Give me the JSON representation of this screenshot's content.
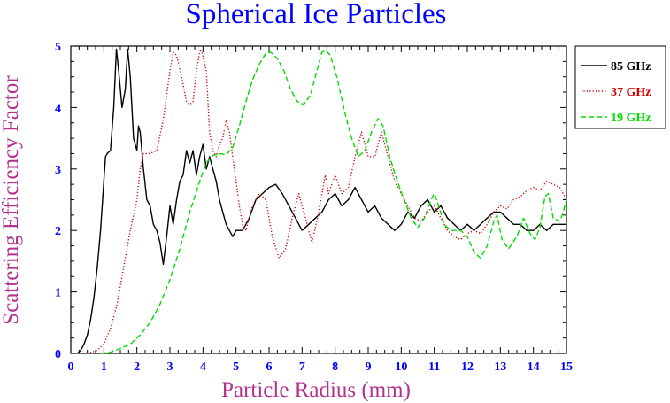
{
  "chart_data": {
    "type": "line",
    "title": "Spherical Ice Particles",
    "xlabel": "Particle Radius (mm)",
    "ylabel": "Scattering Efficiency Factor",
    "xlim": [
      0,
      15
    ],
    "ylim": [
      0,
      5
    ],
    "xticks": [
      "0",
      "1",
      "2",
      "3",
      "4",
      "5",
      "6",
      "7",
      "8",
      "9",
      "10",
      "11",
      "12",
      "13",
      "14",
      "15"
    ],
    "yticks": [
      "0",
      "1",
      "2",
      "3",
      "4",
      "5"
    ],
    "grid": false,
    "legend_position": "outside-top-right",
    "colors": {
      "title": "#0000ff",
      "axis_labels": "#b3338c",
      "tick_labels": "#0000ff"
    },
    "series": [
      {
        "name": "85 GHz",
        "color": "#000000",
        "dash": "solid",
        "points": [
          [
            0.2,
            0.0
          ],
          [
            0.3,
            0.05
          ],
          [
            0.4,
            0.15
          ],
          [
            0.5,
            0.3
          ],
          [
            0.6,
            0.55
          ],
          [
            0.7,
            0.9
          ],
          [
            0.8,
            1.4
          ],
          [
            0.9,
            2.0
          ],
          [
            1.0,
            2.8
          ],
          [
            1.05,
            3.2
          ],
          [
            1.1,
            3.25
          ],
          [
            1.2,
            3.3
          ],
          [
            1.3,
            4.0
          ],
          [
            1.38,
            4.95
          ],
          [
            1.45,
            4.6
          ],
          [
            1.55,
            4.0
          ],
          [
            1.65,
            4.3
          ],
          [
            1.72,
            4.95
          ],
          [
            1.8,
            4.5
          ],
          [
            1.9,
            3.5
          ],
          [
            2.0,
            3.3
          ],
          [
            2.05,
            3.7
          ],
          [
            2.1,
            3.6
          ],
          [
            2.2,
            3.0
          ],
          [
            2.3,
            2.5
          ],
          [
            2.4,
            2.4
          ],
          [
            2.5,
            2.1
          ],
          [
            2.6,
            2.0
          ],
          [
            2.7,
            1.8
          ],
          [
            2.8,
            1.45
          ],
          [
            2.9,
            1.9
          ],
          [
            3.0,
            2.4
          ],
          [
            3.1,
            2.1
          ],
          [
            3.2,
            2.5
          ],
          [
            3.3,
            2.8
          ],
          [
            3.4,
            2.9
          ],
          [
            3.5,
            3.3
          ],
          [
            3.6,
            3.1
          ],
          [
            3.7,
            3.3
          ],
          [
            3.8,
            2.9
          ],
          [
            3.9,
            3.2
          ],
          [
            4.0,
            3.4
          ],
          [
            4.1,
            3.0
          ],
          [
            4.2,
            3.2
          ],
          [
            4.3,
            3.0
          ],
          [
            4.4,
            2.8
          ],
          [
            4.5,
            2.5
          ],
          [
            4.6,
            2.3
          ],
          [
            4.7,
            2.1
          ],
          [
            4.8,
            2.0
          ],
          [
            4.9,
            1.9
          ],
          [
            5.0,
            2.0
          ],
          [
            5.2,
            2.0
          ],
          [
            5.4,
            2.2
          ],
          [
            5.6,
            2.5
          ],
          [
            5.8,
            2.6
          ],
          [
            6.0,
            2.7
          ],
          [
            6.2,
            2.75
          ],
          [
            6.4,
            2.6
          ],
          [
            6.6,
            2.4
          ],
          [
            6.8,
            2.2
          ],
          [
            7.0,
            2.0
          ],
          [
            7.2,
            2.1
          ],
          [
            7.4,
            2.2
          ],
          [
            7.6,
            2.3
          ],
          [
            7.8,
            2.5
          ],
          [
            8.0,
            2.6
          ],
          [
            8.2,
            2.4
          ],
          [
            8.4,
            2.5
          ],
          [
            8.6,
            2.7
          ],
          [
            8.8,
            2.5
          ],
          [
            9.0,
            2.3
          ],
          [
            9.2,
            2.4
          ],
          [
            9.4,
            2.2
          ],
          [
            9.6,
            2.1
          ],
          [
            9.8,
            2.0
          ],
          [
            10.0,
            2.1
          ],
          [
            10.2,
            2.3
          ],
          [
            10.4,
            2.2
          ],
          [
            10.6,
            2.4
          ],
          [
            10.8,
            2.5
          ],
          [
            11.0,
            2.3
          ],
          [
            11.2,
            2.4
          ],
          [
            11.4,
            2.2
          ],
          [
            11.6,
            2.1
          ],
          [
            11.8,
            2.0
          ],
          [
            12.0,
            2.1
          ],
          [
            12.2,
            2.0
          ],
          [
            12.4,
            2.1
          ],
          [
            12.6,
            2.2
          ],
          [
            12.8,
            2.3
          ],
          [
            13.0,
            2.3
          ],
          [
            13.2,
            2.2
          ],
          [
            13.4,
            2.1
          ],
          [
            13.6,
            2.1
          ],
          [
            13.8,
            2.0
          ],
          [
            14.0,
            2.0
          ],
          [
            14.2,
            2.1
          ],
          [
            14.4,
            2.0
          ],
          [
            14.6,
            2.1
          ],
          [
            14.8,
            2.1
          ],
          [
            15.0,
            2.1
          ]
        ]
      },
      {
        "name": "37 GHz",
        "color": "#cc0000",
        "dash": "dotted",
        "points": [
          [
            0.5,
            0.0
          ],
          [
            0.8,
            0.05
          ],
          [
            1.0,
            0.15
          ],
          [
            1.2,
            0.4
          ],
          [
            1.4,
            0.8
          ],
          [
            1.6,
            1.4
          ],
          [
            1.8,
            2.0
          ],
          [
            2.0,
            2.5
          ],
          [
            2.1,
            3.0
          ],
          [
            2.2,
            3.25
          ],
          [
            2.4,
            3.25
          ],
          [
            2.6,
            3.3
          ],
          [
            2.8,
            3.8
          ],
          [
            3.0,
            4.6
          ],
          [
            3.1,
            4.9
          ],
          [
            3.2,
            4.85
          ],
          [
            3.35,
            4.5
          ],
          [
            3.5,
            4.1
          ],
          [
            3.6,
            4.05
          ],
          [
            3.7,
            4.1
          ],
          [
            3.8,
            4.6
          ],
          [
            3.9,
            4.9
          ],
          [
            3.95,
            4.95
          ],
          [
            4.1,
            4.6
          ],
          [
            4.2,
            3.6
          ],
          [
            4.3,
            3.3
          ],
          [
            4.4,
            3.2
          ],
          [
            4.5,
            3.4
          ],
          [
            4.6,
            3.5
          ],
          [
            4.7,
            3.8
          ],
          [
            4.8,
            3.6
          ],
          [
            4.9,
            3.2
          ],
          [
            5.0,
            2.8
          ],
          [
            5.1,
            2.4
          ],
          [
            5.2,
            2.1
          ],
          [
            5.3,
            2.0
          ],
          [
            5.5,
            2.4
          ],
          [
            5.7,
            2.6
          ],
          [
            5.9,
            2.5
          ],
          [
            6.0,
            2.2
          ],
          [
            6.1,
            1.9
          ],
          [
            6.3,
            1.55
          ],
          [
            6.5,
            1.7
          ],
          [
            6.7,
            2.2
          ],
          [
            6.9,
            2.6
          ],
          [
            7.1,
            2.2
          ],
          [
            7.3,
            1.8
          ],
          [
            7.5,
            2.3
          ],
          [
            7.7,
            2.9
          ],
          [
            7.8,
            2.6
          ],
          [
            8.0,
            2.9
          ],
          [
            8.2,
            2.6
          ],
          [
            8.4,
            2.7
          ],
          [
            8.6,
            3.2
          ],
          [
            8.8,
            3.6
          ],
          [
            9.0,
            3.2
          ],
          [
            9.2,
            3.2
          ],
          [
            9.4,
            3.6
          ],
          [
            9.6,
            3.2
          ],
          [
            9.8,
            2.8
          ],
          [
            10.0,
            2.6
          ],
          [
            10.2,
            2.4
          ],
          [
            10.4,
            2.2
          ],
          [
            10.6,
            2.15
          ],
          [
            10.8,
            2.3
          ],
          [
            11.0,
            2.4
          ],
          [
            11.2,
            2.2
          ],
          [
            11.4,
            2.0
          ],
          [
            11.6,
            1.9
          ],
          [
            11.8,
            1.85
          ],
          [
            12.0,
            1.95
          ],
          [
            12.2,
            2.0
          ],
          [
            12.4,
            1.95
          ],
          [
            12.6,
            2.1
          ],
          [
            12.8,
            2.3
          ],
          [
            13.0,
            2.4
          ],
          [
            13.2,
            2.35
          ],
          [
            13.4,
            2.5
          ],
          [
            13.6,
            2.55
          ],
          [
            13.8,
            2.65
          ],
          [
            14.0,
            2.7
          ],
          [
            14.2,
            2.65
          ],
          [
            14.4,
            2.8
          ],
          [
            14.6,
            2.75
          ],
          [
            14.8,
            2.7
          ],
          [
            15.0,
            2.5
          ]
        ]
      },
      {
        "name": "19 GHz",
        "color": "#00dd00",
        "dash": "dashed",
        "points": [
          [
            0.9,
            0.0
          ],
          [
            1.2,
            0.02
          ],
          [
            1.5,
            0.08
          ],
          [
            1.8,
            0.15
          ],
          [
            2.1,
            0.3
          ],
          [
            2.4,
            0.5
          ],
          [
            2.7,
            0.8
          ],
          [
            3.0,
            1.2
          ],
          [
            3.3,
            1.7
          ],
          [
            3.6,
            2.3
          ],
          [
            3.9,
            2.8
          ],
          [
            4.1,
            3.1
          ],
          [
            4.3,
            3.22
          ],
          [
            4.5,
            3.25
          ],
          [
            4.7,
            3.23
          ],
          [
            4.9,
            3.35
          ],
          [
            5.1,
            3.7
          ],
          [
            5.3,
            4.1
          ],
          [
            5.5,
            4.45
          ],
          [
            5.7,
            4.7
          ],
          [
            5.9,
            4.88
          ],
          [
            6.05,
            4.9
          ],
          [
            6.25,
            4.8
          ],
          [
            6.45,
            4.6
          ],
          [
            6.65,
            4.3
          ],
          [
            6.85,
            4.1
          ],
          [
            7.05,
            4.05
          ],
          [
            7.25,
            4.2
          ],
          [
            7.45,
            4.6
          ],
          [
            7.6,
            4.9
          ],
          [
            7.72,
            4.93
          ],
          [
            7.85,
            4.85
          ],
          [
            8.05,
            4.5
          ],
          [
            8.3,
            3.9
          ],
          [
            8.5,
            3.5
          ],
          [
            8.7,
            3.2
          ],
          [
            8.9,
            3.3
          ],
          [
            9.1,
            3.6
          ],
          [
            9.3,
            3.82
          ],
          [
            9.45,
            3.7
          ],
          [
            9.65,
            3.2
          ],
          [
            9.85,
            2.85
          ],
          [
            10.05,
            2.55
          ],
          [
            10.3,
            2.2
          ],
          [
            10.5,
            2.05
          ],
          [
            10.7,
            2.2
          ],
          [
            10.9,
            2.5
          ],
          [
            11.0,
            2.6
          ],
          [
            11.1,
            2.45
          ],
          [
            11.3,
            2.1
          ],
          [
            11.5,
            2.0
          ],
          [
            11.8,
            2.0
          ],
          [
            12.0,
            1.9
          ],
          [
            12.2,
            1.65
          ],
          [
            12.4,
            1.55
          ],
          [
            12.6,
            1.75
          ],
          [
            12.8,
            2.15
          ],
          [
            12.9,
            2.25
          ],
          [
            13.05,
            1.85
          ],
          [
            13.25,
            1.7
          ],
          [
            13.5,
            1.9
          ],
          [
            13.7,
            2.2
          ],
          [
            13.9,
            1.95
          ],
          [
            14.05,
            1.85
          ],
          [
            14.2,
            2.05
          ],
          [
            14.35,
            2.55
          ],
          [
            14.45,
            2.6
          ],
          [
            14.6,
            2.2
          ],
          [
            14.8,
            2.15
          ],
          [
            14.9,
            2.3
          ],
          [
            15.0,
            2.5
          ]
        ]
      }
    ]
  }
}
